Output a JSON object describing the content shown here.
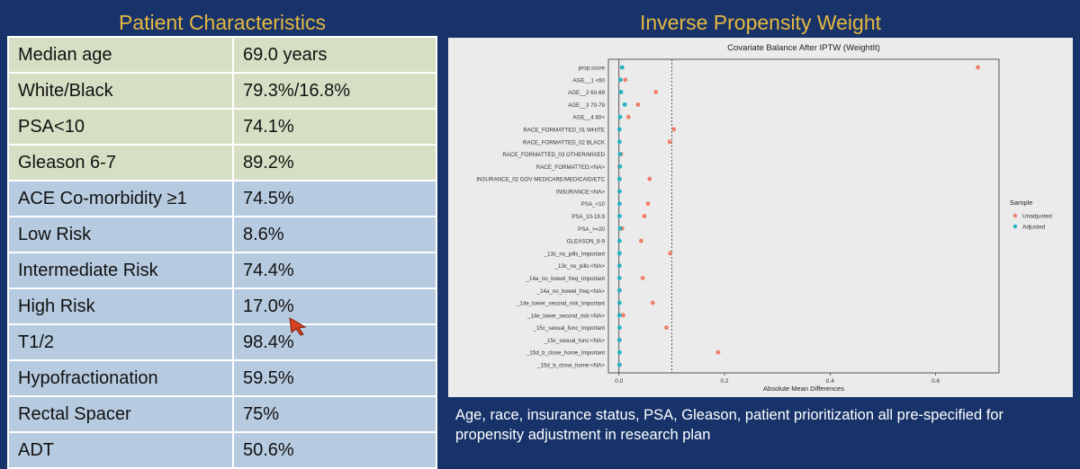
{
  "left_panel": {
    "title": "Patient Characteristics",
    "rows": [
      {
        "label": "Median age",
        "value": "69.0 years",
        "tone": "green"
      },
      {
        "label": "White/Black",
        "value": "79.3%/16.8%",
        "tone": "green"
      },
      {
        "label": "PSA<10",
        "value": "74.1%",
        "tone": "green"
      },
      {
        "label": "Gleason 6-7",
        "value": "89.2%",
        "tone": "green"
      },
      {
        "label": "ACE Co-morbidity ≥1",
        "value": "74.5%",
        "tone": "blue"
      },
      {
        "label": "Low Risk",
        "value": "8.6%",
        "tone": "blue"
      },
      {
        "label": "Intermediate Risk",
        "value": "74.4%",
        "tone": "blue"
      },
      {
        "label": "High Risk",
        "value": "17.0%",
        "tone": "blue"
      },
      {
        "label": "T1/2",
        "value": "98.4%",
        "tone": "blue"
      },
      {
        "label": "Hypofractionation",
        "value": "59.5%",
        "tone": "blue"
      },
      {
        "label": "Rectal Spacer",
        "value": "75%",
        "tone": "blue"
      },
      {
        "label": "ADT",
        "value": "50.6%",
        "tone": "blue"
      }
    ]
  },
  "right_panel": {
    "title": "Inverse Propensity Weight",
    "caption": "Age, race, insurance status, PSA, Gleason, patient prioritization all pre-specified for propensity adjustment in research plan"
  },
  "colors": {
    "unadjusted": "#f07f6c",
    "adjusted": "#23b3c3",
    "heading": "#e6b840",
    "background": "#17336a"
  },
  "chart_data": {
    "type": "scatter",
    "title": "Covariate Balance After IPTW (WeightIt)",
    "xlabel": "Absolute Mean Differences",
    "ylabel": "",
    "xlim": [
      -0.02,
      0.72
    ],
    "x_ticks": [
      "0.0",
      "0.2",
      "0.4",
      "0.6"
    ],
    "threshold": 0.1,
    "legend": {
      "title": "Sample",
      "position": "right"
    },
    "categories": [
      "prop.score",
      "AGE__1 <60",
      "AGE__2 60-69",
      "AGE__3 70-79",
      "AGE__4 80+",
      "RACE_FORMATTED_01 WHITE",
      "RACE_FORMATTED_02 BLACK",
      "RACE_FORMATTED_03 OTHER/MIXED",
      "RACE_FORMATTED:<NA>",
      "INSURANCE_02 GOV MEDICARE/MEDICAID/ETC",
      "INSURANCE:<NA>",
      "PSA_<10",
      "PSA_10-19.9",
      "PSA_>=20",
      "GLEASON_8-9",
      "_13c_no_pills_Important",
      "_13c_no_pills:<NA>",
      "_14a_no_bowel_freq_Important",
      "_14a_no_bowel_freq:<NA>",
      "_14e_lower_second_risk_Important",
      "_14e_lower_second_risk:<NA>",
      "_15c_sexual_func_Important",
      "_15c_sexual_func:<NA>",
      "_15d_b_close_home_Important",
      "_15d_b_close_home:<NA>"
    ],
    "series": [
      {
        "name": "Unadjusted",
        "values": [
          0.68,
          0.012,
          0.07,
          0.036,
          0.018,
          0.104,
          0.096,
          0.004,
          0.001,
          0.058,
          0.001,
          0.055,
          0.048,
          0.006,
          0.042,
          0.097,
          0.001,
          0.045,
          0.001,
          0.064,
          0.008,
          0.09,
          0.001,
          0.188,
          0.001
        ]
      },
      {
        "name": "Adjusted",
        "values": [
          0.006,
          0.003,
          0.004,
          0.011,
          0.002,
          0.001,
          0.001,
          0.002,
          0.002,
          0.001,
          0.001,
          0.001,
          0.001,
          0.002,
          0.001,
          0.001,
          0.001,
          0.001,
          0.001,
          0.001,
          0.001,
          0.001,
          0.001,
          0.001,
          0.001
        ]
      }
    ]
  }
}
